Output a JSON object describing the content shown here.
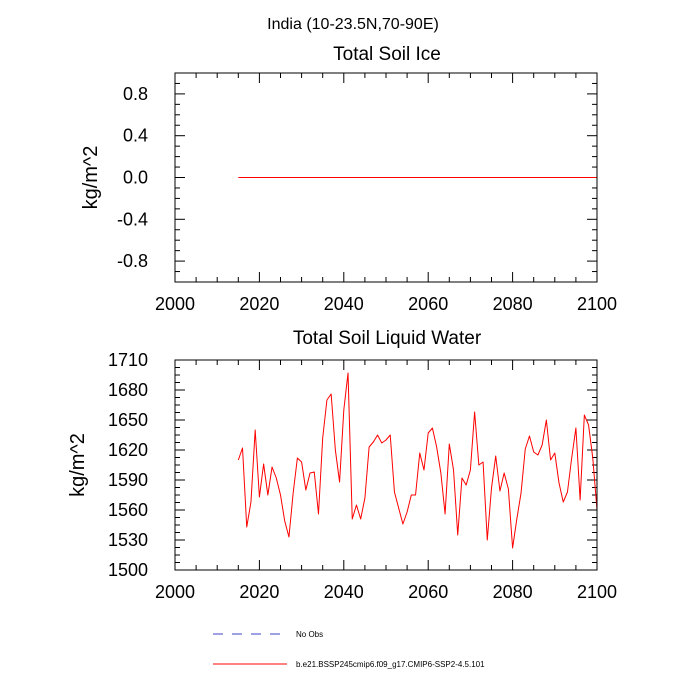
{
  "suptitle": "India (10-23.5N,70-90E)",
  "chart_data": [
    {
      "type": "line",
      "title": "Total Soil Ice",
      "xlabel": "",
      "ylabel": "kg/m^2",
      "xlim": [
        2000,
        2100
      ],
      "ylim": [
        -1.0,
        1.0
      ],
      "xticks": [
        2000,
        2020,
        2040,
        2060,
        2080,
        2100
      ],
      "xtick_labels": [
        "2000",
        "2020",
        "2040",
        "2060",
        "2080",
        "2100"
      ],
      "yticks": [
        0.8,
        0.4,
        0.0,
        -0.4,
        -0.8
      ],
      "ytick_labels": [
        "0.8",
        "0.4",
        "0.0",
        "-0.4",
        "-0.8"
      ],
      "series": [
        {
          "name": "b.e21.BSSP245cmip6.f09_g17.CMIP6-SSP2-4.5.101",
          "color": "#ff0000",
          "x": [
            2015,
            2100
          ],
          "y": [
            0.0,
            0.0
          ]
        }
      ]
    },
    {
      "type": "line",
      "title": "Total Soil Liquid Water",
      "xlabel": "",
      "ylabel": "kg/m^2",
      "xlim": [
        2000,
        2100
      ],
      "ylim": [
        1500,
        1710
      ],
      "xticks": [
        2000,
        2020,
        2040,
        2060,
        2080,
        2100
      ],
      "xtick_labels": [
        "2000",
        "2020",
        "2040",
        "2060",
        "2080",
        "2100"
      ],
      "yticks": [
        1710,
        1680,
        1650,
        1620,
        1590,
        1560,
        1530,
        1500
      ],
      "ytick_labels": [
        "1710",
        "1680",
        "1650",
        "1620",
        "1590",
        "1560",
        "1530",
        "1500"
      ],
      "series": [
        {
          "name": "b.e21.BSSP245cmip6.f09_g17.CMIP6-SSP2-4.5.101",
          "color": "#ff0000",
          "x_start": 2015,
          "x_step": 1,
          "y": [
            1610,
            1622,
            1543,
            1568,
            1640,
            1573,
            1606,
            1575,
            1603,
            1592,
            1575,
            1549,
            1533,
            1577,
            1612,
            1608,
            1580,
            1597,
            1598,
            1556,
            1632,
            1670,
            1676,
            1620,
            1588,
            1660,
            1697,
            1551,
            1565,
            1551,
            1572,
            1623,
            1628,
            1635,
            1627,
            1630,
            1635,
            1578,
            1562,
            1546,
            1558,
            1575,
            1575,
            1617,
            1600,
            1637,
            1642,
            1623,
            1597,
            1556,
            1626,
            1600,
            1535,
            1592,
            1585,
            1600,
            1658,
            1605,
            1608,
            1530,
            1582,
            1614,
            1579,
            1597,
            1581,
            1522,
            1551,
            1577,
            1621,
            1634,
            1618,
            1615,
            1625,
            1650,
            1610,
            1617,
            1587,
            1568,
            1578,
            1612,
            1642,
            1570,
            1655,
            1645,
            1612,
            1560
          ]
        }
      ]
    }
  ],
  "legend": {
    "placement": "bottom",
    "entries": [
      {
        "label": "No Obs",
        "color": "#3c46c8",
        "style": "dashed"
      },
      {
        "label": "b.e21.BSSP245cmip6.f09_g17.CMIP6-SSP2-4.5.101",
        "color": "#ff0000",
        "style": "solid"
      }
    ]
  }
}
